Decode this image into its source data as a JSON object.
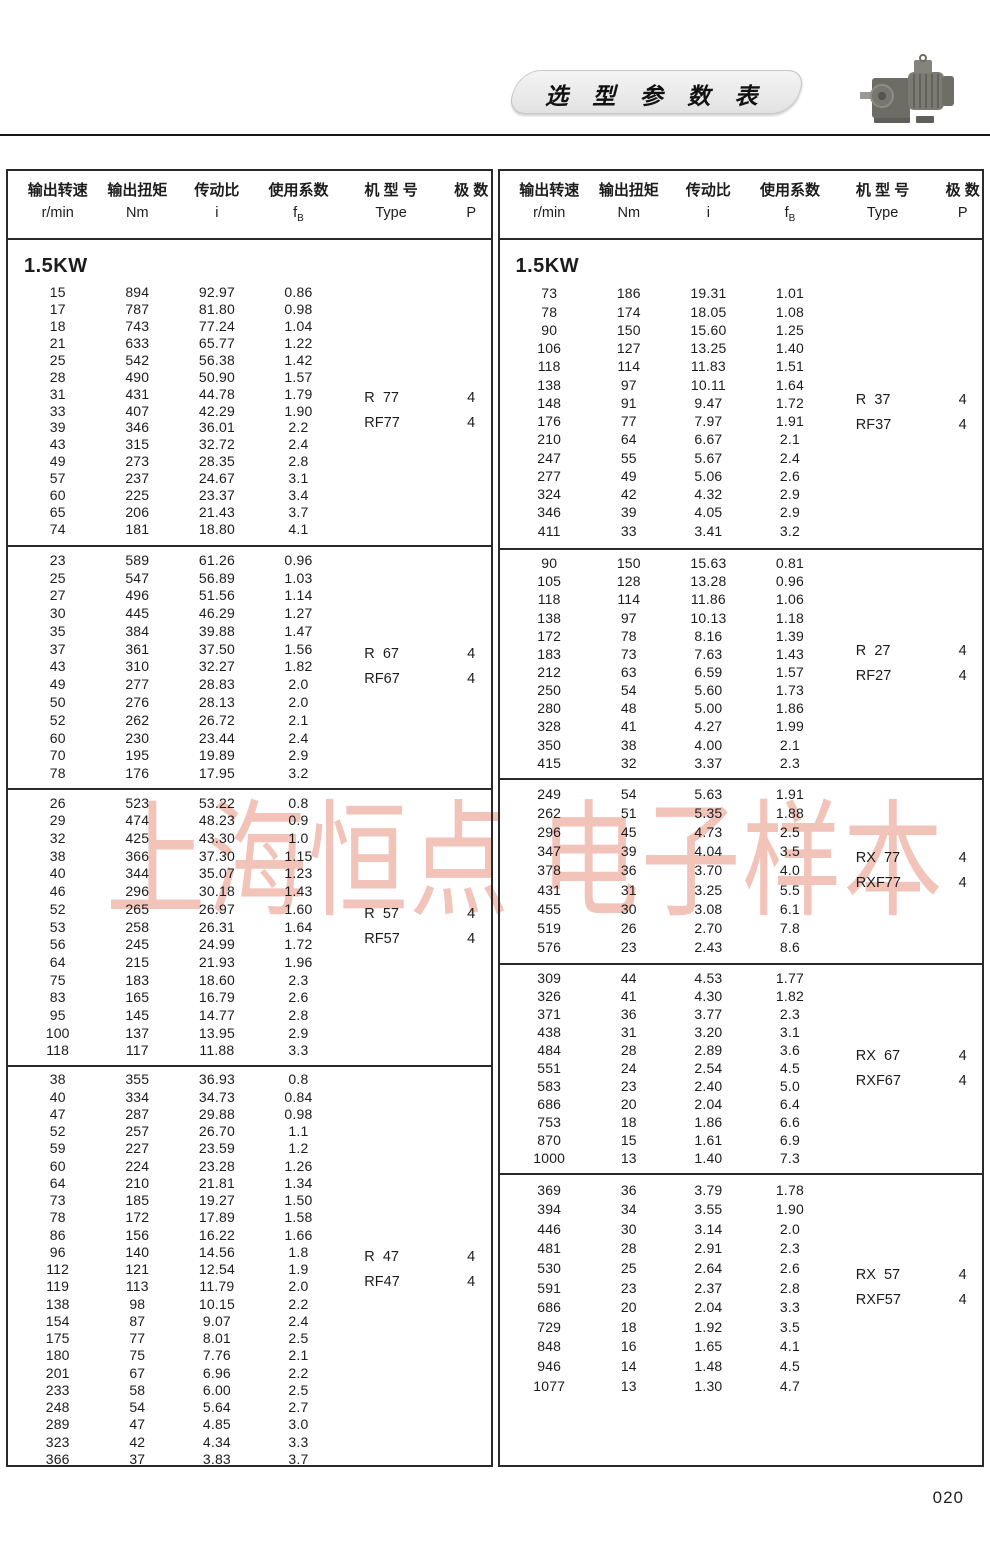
{
  "page": {
    "header_title": "选 型 参 数 表",
    "watermark": "上海恒点 电子样本",
    "page_number": "020"
  },
  "columns": {
    "cn": [
      "输出转速",
      "输出扭矩",
      "传动比",
      "使用系数",
      "机 型 号",
      "极 数"
    ],
    "sub": [
      "r/min",
      "Nm",
      "i",
      "f",
      "Type",
      "P"
    ],
    "fb_sub": "B"
  },
  "tables": [
    {
      "power": "1.5KW",
      "blocks": [
        {
          "types": [
            [
              "R  77",
              "4"
            ],
            [
              "RF77",
              "4"
            ]
          ],
          "rows": [
            [
              "15",
              "894",
              "92.97",
              "0.86"
            ],
            [
              "17",
              "787",
              "81.80",
              "0.98"
            ],
            [
              "18",
              "743",
              "77.24",
              "1.04"
            ],
            [
              "21",
              "633",
              "65.77",
              "1.22"
            ],
            [
              "25",
              "542",
              "56.38",
              "1.42"
            ],
            [
              "28",
              "490",
              "50.90",
              "1.57"
            ],
            [
              "31",
              "431",
              "44.78",
              "1.79"
            ],
            [
              "33",
              "407",
              "42.29",
              "1.90"
            ],
            [
              "39",
              "346",
              "36.01",
              "2.2"
            ],
            [
              "43",
              "315",
              "32.72",
              "2.4"
            ],
            [
              "49",
              "273",
              "28.35",
              "2.8"
            ],
            [
              "57",
              "237",
              "24.67",
              "3.1"
            ],
            [
              "60",
              "225",
              "23.37",
              "3.4"
            ],
            [
              "65",
              "206",
              "21.43",
              "3.7"
            ],
            [
              "74",
              "181",
              "18.80",
              "4.1"
            ]
          ]
        },
        {
          "types": [
            [
              "R  67",
              "4"
            ],
            [
              "RF67",
              "4"
            ]
          ],
          "rows": [
            [
              "23",
              "589",
              "61.26",
              "0.96"
            ],
            [
              "25",
              "547",
              "56.89",
              "1.03"
            ],
            [
              "27",
              "496",
              "51.56",
              "1.14"
            ],
            [
              "30",
              "445",
              "46.29",
              "1.27"
            ],
            [
              "35",
              "384",
              "39.88",
              "1.47"
            ],
            [
              "37",
              "361",
              "37.50",
              "1.56"
            ],
            [
              "43",
              "310",
              "32.27",
              "1.82"
            ],
            [
              "49",
              "277",
              "28.83",
              "2.0"
            ],
            [
              "50",
              "276",
              "28.13",
              "2.0"
            ],
            [
              "52",
              "262",
              "26.72",
              "2.1"
            ],
            [
              "60",
              "230",
              "23.44",
              "2.4"
            ],
            [
              "70",
              "195",
              "19.89",
              "2.9"
            ],
            [
              "78",
              "176",
              "17.95",
              "3.2"
            ]
          ]
        },
        {
          "types": [
            [
              "R  57",
              "4"
            ],
            [
              "RF57",
              "4"
            ]
          ],
          "rows": [
            [
              "26",
              "523",
              "53.22",
              "0.8"
            ],
            [
              "29",
              "474",
              "48.23",
              "0.9"
            ],
            [
              "32",
              "425",
              "43.30",
              "1.0"
            ],
            [
              "38",
              "366",
              "37.30",
              "1.15"
            ],
            [
              "40",
              "344",
              "35.07",
              "1.23"
            ],
            [
              "46",
              "296",
              "30.18",
              "1.43"
            ],
            [
              "52",
              "265",
              "26.97",
              "1.60"
            ],
            [
              "53",
              "258",
              "26.31",
              "1.64"
            ],
            [
              "56",
              "245",
              "24.99",
              "1.72"
            ],
            [
              "64",
              "215",
              "21.93",
              "1.96"
            ],
            [
              "75",
              "183",
              "18.60",
              "2.3"
            ],
            [
              "83",
              "165",
              "16.79",
              "2.6"
            ],
            [
              "95",
              "145",
              "14.77",
              "2.8"
            ],
            [
              "100",
              "137",
              "13.95",
              "2.9"
            ],
            [
              "118",
              "117",
              "11.88",
              "3.3"
            ]
          ]
        },
        {
          "types": [
            [
              "R  47",
              "4"
            ],
            [
              "RF47",
              "4"
            ]
          ],
          "rows": [
            [
              "38",
              "355",
              "36.93",
              "0.8"
            ],
            [
              "40",
              "334",
              "34.73",
              "0.84"
            ],
            [
              "47",
              "287",
              "29.88",
              "0.98"
            ],
            [
              "52",
              "257",
              "26.70",
              "1.1"
            ],
            [
              "59",
              "227",
              "23.59",
              "1.2"
            ],
            [
              "60",
              "224",
              "23.28",
              "1.26"
            ],
            [
              "64",
              "210",
              "21.81",
              "1.34"
            ],
            [
              "73",
              "185",
              "19.27",
              "1.50"
            ],
            [
              "78",
              "172",
              "17.89",
              "1.58"
            ],
            [
              "86",
              "156",
              "16.22",
              "1.66"
            ],
            [
              "96",
              "140",
              "14.56",
              "1.8"
            ],
            [
              "112",
              "121",
              "12.54",
              "1.9"
            ],
            [
              "119",
              "113",
              "11.79",
              "2.0"
            ],
            [
              "138",
              "98",
              "10.15",
              "2.2"
            ],
            [
              "154",
              "87",
              "9.07",
              "2.4"
            ],
            [
              "175",
              "77",
              "8.01",
              "2.5"
            ],
            [
              "180",
              "75",
              "7.76",
              "2.1"
            ],
            [
              "201",
              "67",
              "6.96",
              "2.2"
            ],
            [
              "233",
              "58",
              "6.00",
              "2.5"
            ],
            [
              "248",
              "54",
              "5.64",
              "2.7"
            ],
            [
              "289",
              "47",
              "4.85",
              "3.0"
            ],
            [
              "323",
              "42",
              "4.34",
              "3.3"
            ],
            [
              "366",
              "37",
              "3.83",
              "3.7"
            ]
          ]
        }
      ]
    },
    {
      "power": "1.5KW",
      "blocks": [
        {
          "types": [
            [
              "R  37",
              "4"
            ],
            [
              "RF37",
              "4"
            ]
          ],
          "rows": [
            [
              "73",
              "186",
              "19.31",
              "1.01"
            ],
            [
              "78",
              "174",
              "18.05",
              "1.08"
            ],
            [
              "90",
              "150",
              "15.60",
              "1.25"
            ],
            [
              "106",
              "127",
              "13.25",
              "1.40"
            ],
            [
              "118",
              "114",
              "11.83",
              "1.51"
            ],
            [
              "138",
              "97",
              "10.11",
              "1.64"
            ],
            [
              "148",
              "91",
              "9.47",
              "1.72"
            ],
            [
              "176",
              "77",
              "7.97",
              "1.91"
            ],
            [
              "210",
              "64",
              "6.67",
              "2.1"
            ],
            [
              "247",
              "55",
              "5.67",
              "2.4"
            ],
            [
              "277",
              "49",
              "5.06",
              "2.6"
            ],
            [
              "324",
              "42",
              "4.32",
              "2.9"
            ],
            [
              "346",
              "39",
              "4.05",
              "2.9"
            ],
            [
              "411",
              "33",
              "3.41",
              "3.2"
            ]
          ]
        },
        {
          "types": [
            [
              "R  27",
              "4"
            ],
            [
              "RF27",
              "4"
            ]
          ],
          "rows": [
            [
              "90",
              "150",
              "15.63",
              "0.81"
            ],
            [
              "105",
              "128",
              "13.28",
              "0.96"
            ],
            [
              "118",
              "114",
              "11.86",
              "1.06"
            ],
            [
              "138",
              "97",
              "10.13",
              "1.18"
            ],
            [
              "172",
              "78",
              "8.16",
              "1.39"
            ],
            [
              "183",
              "73",
              "7.63",
              "1.43"
            ],
            [
              "212",
              "63",
              "6.59",
              "1.57"
            ],
            [
              "250",
              "54",
              "5.60",
              "1.73"
            ],
            [
              "280",
              "48",
              "5.00",
              "1.86"
            ],
            [
              "328",
              "41",
              "4.27",
              "1.99"
            ],
            [
              "350",
              "38",
              "4.00",
              "2.1"
            ],
            [
              "415",
              "32",
              "3.37",
              "2.3"
            ]
          ]
        },
        {
          "types": [
            [
              "RX  77",
              "4"
            ],
            [
              "RXF77",
              "4"
            ]
          ],
          "rows": [
            [
              "249",
              "54",
              "5.63",
              "1.91"
            ],
            [
              "262",
              "51",
              "5.35",
              "1.88"
            ],
            [
              "296",
              "45",
              "4.73",
              "2.5"
            ],
            [
              "347",
              "39",
              "4.04",
              "3.5"
            ],
            [
              "378",
              "36",
              "3.70",
              "4.0"
            ],
            [
              "431",
              "31",
              "3.25",
              "5.5"
            ],
            [
              "455",
              "30",
              "3.08",
              "6.1"
            ],
            [
              "519",
              "26",
              "2.70",
              "7.8"
            ],
            [
              "576",
              "23",
              "2.43",
              "8.6"
            ]
          ]
        },
        {
          "types": [
            [
              "RX  67",
              "4"
            ],
            [
              "RXF67",
              "4"
            ]
          ],
          "rows": [
            [
              "309",
              "44",
              "4.53",
              "1.77"
            ],
            [
              "326",
              "41",
              "4.30",
              "1.82"
            ],
            [
              "371",
              "36",
              "3.77",
              "2.3"
            ],
            [
              "438",
              "31",
              "3.20",
              "3.1"
            ],
            [
              "484",
              "28",
              "2.89",
              "3.6"
            ],
            [
              "551",
              "24",
              "2.54",
              "4.5"
            ],
            [
              "583",
              "23",
              "2.40",
              "5.0"
            ],
            [
              "686",
              "20",
              "2.04",
              "6.4"
            ],
            [
              "753",
              "18",
              "1.86",
              "6.6"
            ],
            [
              "870",
              "15",
              "1.61",
              "6.9"
            ],
            [
              "1000",
              "13",
              "1.40",
              "7.3"
            ]
          ]
        },
        {
          "types": [
            [
              "RX  57",
              "4"
            ],
            [
              "RXF57",
              "4"
            ]
          ],
          "rows": [
            [
              "369",
              "36",
              "3.79",
              "1.78"
            ],
            [
              "394",
              "34",
              "3.55",
              "1.90"
            ],
            [
              "446",
              "30",
              "3.14",
              "2.0"
            ],
            [
              "481",
              "28",
              "2.91",
              "2.3"
            ],
            [
              "530",
              "25",
              "2.64",
              "2.6"
            ],
            [
              "591",
              "23",
              "2.37",
              "2.8"
            ],
            [
              "686",
              "20",
              "2.04",
              "3.3"
            ],
            [
              "729",
              "18",
              "1.92",
              "3.5"
            ],
            [
              "848",
              "16",
              "1.65",
              "4.1"
            ],
            [
              "946",
              "14",
              "1.48",
              "4.5"
            ],
            [
              "1077",
              "13",
              "1.30",
              "4.7"
            ]
          ]
        }
      ]
    }
  ]
}
